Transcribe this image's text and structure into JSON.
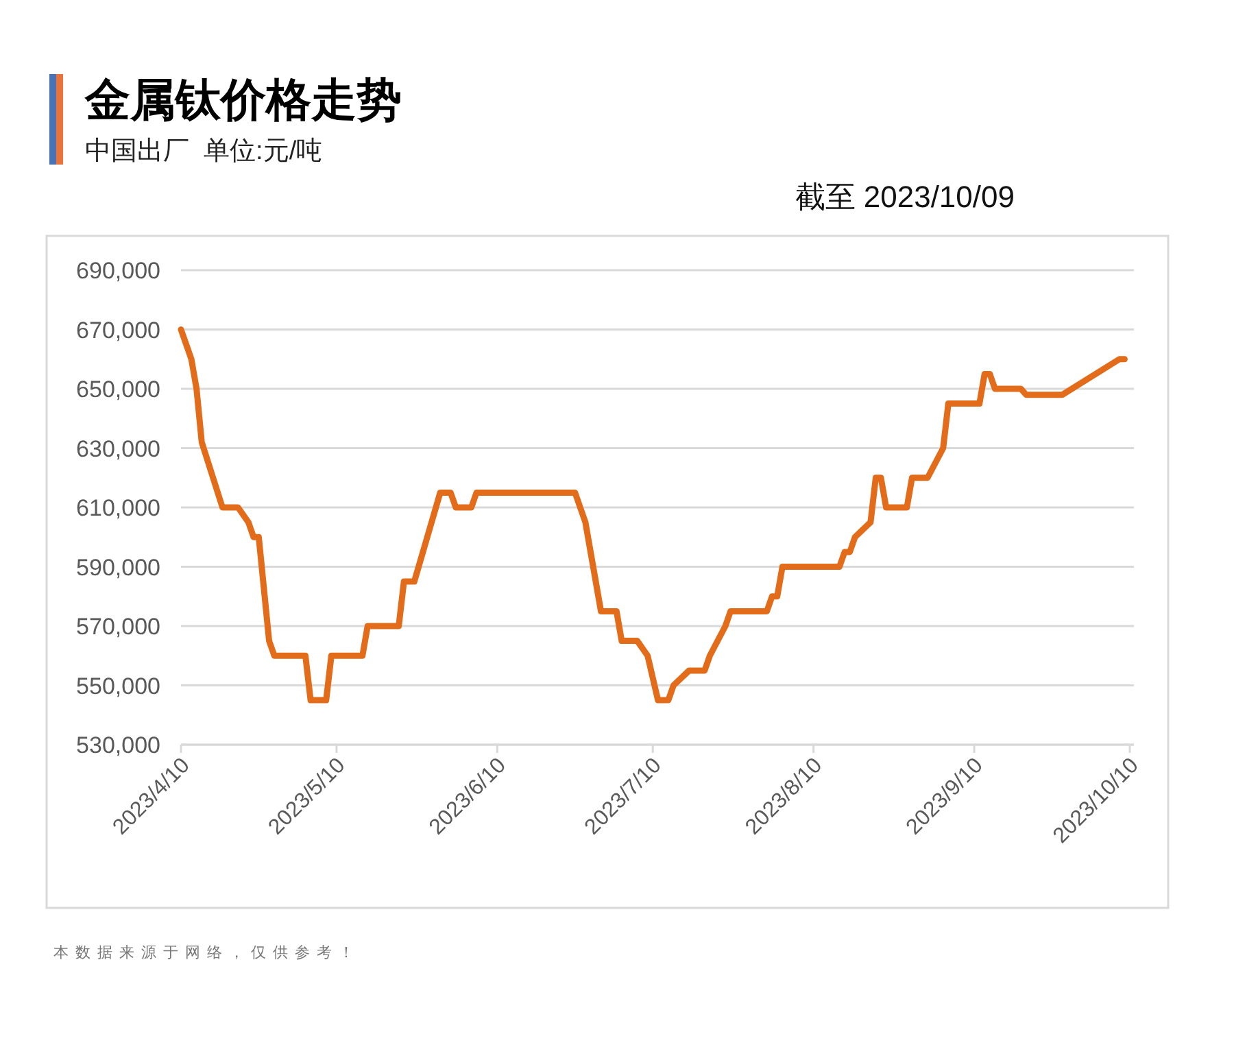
{
  "chart_data": {
    "type": "line",
    "title": "金属钛价格走势",
    "subtitle": "中国出厂  单位:元/吨",
    "annotations": [
      "截至 2023/10/09",
      "本数据来源于网络，仅供参考！"
    ],
    "x": [
      "2023-04-10",
      "2023-04-12",
      "2023-04-13",
      "2023-04-14",
      "2023-04-18",
      "2023-04-21",
      "2023-04-23",
      "2023-04-24",
      "2023-04-25",
      "2023-04-27",
      "2023-04-28",
      "2023-05-04",
      "2023-05-05",
      "2023-05-08",
      "2023-05-09",
      "2023-05-15",
      "2023-05-16",
      "2023-05-22",
      "2023-05-23",
      "2023-05-25",
      "2023-05-30",
      "2023-06-01",
      "2023-06-02",
      "2023-06-05",
      "2023-06-06",
      "2023-06-25",
      "2023-06-27",
      "2023-06-30",
      "2023-07-03",
      "2023-07-04",
      "2023-07-07",
      "2023-07-09",
      "2023-07-11",
      "2023-07-13",
      "2023-07-14",
      "2023-07-17",
      "2023-07-20",
      "2023-07-21",
      "2023-07-24",
      "2023-07-25",
      "2023-08-01",
      "2023-08-02",
      "2023-08-03",
      "2023-08-04",
      "2023-08-15",
      "2023-08-16",
      "2023-08-17",
      "2023-08-18",
      "2023-08-21",
      "2023-08-22",
      "2023-08-23",
      "2023-08-24",
      "2023-08-28",
      "2023-08-29",
      "2023-09-01",
      "2023-09-04",
      "2023-09-05",
      "2023-09-11",
      "2023-09-12",
      "2023-09-13",
      "2023-09-14",
      "2023-09-19",
      "2023-09-20",
      "2023-09-27",
      "2023-10-08",
      "2023-10-09"
    ],
    "series": [
      {
        "color": "#e36c1b",
        "values": [
          670000,
          660000,
          650000,
          632000,
          610000,
          610000,
          605000,
          600000,
          600000,
          565000,
          560000,
          560000,
          545000,
          545000,
          560000,
          560000,
          570000,
          570000,
          585000,
          585000,
          615000,
          615000,
          610000,
          610000,
          615000,
          615000,
          605000,
          575000,
          575000,
          565000,
          565000,
          560000,
          545000,
          545000,
          550000,
          555000,
          555000,
          560000,
          570000,
          575000,
          575000,
          580000,
          580000,
          590000,
          590000,
          595000,
          595000,
          600000,
          605000,
          620000,
          620000,
          610000,
          610000,
          620000,
          620000,
          630000,
          645000,
          645000,
          655000,
          655000,
          650000,
          650000,
          648000,
          648000,
          660000,
          660000
        ]
      }
    ],
    "xlim": [
      "2023-04-10",
      "2023-10-10"
    ],
    "xticks": [
      {
        "value": "2023-04-10",
        "label": "2023/4/10"
      },
      {
        "value": "2023-05-10",
        "label": "2023/5/10"
      },
      {
        "value": "2023-06-10",
        "label": "2023/6/10"
      },
      {
        "value": "2023-07-10",
        "label": "2023/7/10"
      },
      {
        "value": "2023-08-10",
        "label": "2023/8/10"
      },
      {
        "value": "2023-09-10",
        "label": "2023/9/10"
      },
      {
        "value": "2023-10-10",
        "label": "2023/10/10"
      }
    ],
    "ylim": [
      530000,
      690000
    ],
    "yticks": [
      {
        "value": 530000,
        "label": "530,000"
      },
      {
        "value": 550000,
        "label": "550,000"
      },
      {
        "value": 570000,
        "label": "570,000"
      },
      {
        "value": 590000,
        "label": "590,000"
      },
      {
        "value": 610000,
        "label": "610,000"
      },
      {
        "value": 630000,
        "label": "630,000"
      },
      {
        "value": 650000,
        "label": "650,000"
      },
      {
        "value": 670000,
        "label": "670,000"
      },
      {
        "value": 690000,
        "label": "690,000"
      }
    ],
    "grid": "y"
  }
}
